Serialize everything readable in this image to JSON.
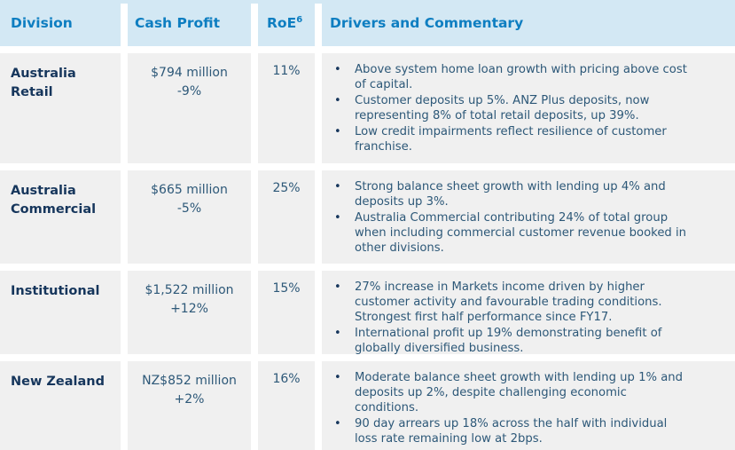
{
  "colors": {
    "header_bg": "#d3e8f4",
    "header_text": "#0e7ec1",
    "row_bg": "#f0f0f0",
    "division_text": "#16365c",
    "body_text": "#2d5878"
  },
  "table": {
    "columns": {
      "division": "Division",
      "cash_profit": "Cash Profit",
      "roe": "RoE",
      "roe_superscript": "6",
      "drivers": "Drivers and Commentary"
    },
    "rows": [
      {
        "division": "Australia Retail",
        "cash_profit": "$794 million",
        "cash_profit_change": "-9%",
        "roe": "11%",
        "bullets": [
          "Above system home loan growth with pricing above cost of capital.",
          "Customer deposits up 5%. ANZ Plus deposits, now representing 8% of total retail deposits, up 39%.",
          "Low credit impairments reflect resilience of customer franchise."
        ]
      },
      {
        "division": "Australia Commercial",
        "cash_profit": "$665 million",
        "cash_profit_change": "-5%",
        "roe": "25%",
        "bullets": [
          "Strong balance sheet growth with lending up 4% and deposits up 3%.",
          "Australia Commercial contributing 24% of total group when including commercial customer revenue booked in other divisions."
        ]
      },
      {
        "division": "Institutional",
        "cash_profit": "$1,522 million",
        "cash_profit_change": "+12%",
        "roe": "15%",
        "bullets": [
          "27% increase in Markets income driven by higher customer activity and favourable trading conditions. Strongest first half performance since FY17.",
          "International profit up 19% demonstrating benefit of globally diversified business."
        ]
      },
      {
        "division": "New Zealand",
        "cash_profit": "NZ$852 million",
        "cash_profit_change": "+2%",
        "roe": "16%",
        "bullets": [
          "Moderate balance sheet growth with lending up 1% and deposits up 2%, despite challenging economic conditions.",
          "90 day arrears up 18% across the half with individual loss rate remaining low at 2bps."
        ]
      }
    ]
  },
  "bullet_glyph": "•"
}
